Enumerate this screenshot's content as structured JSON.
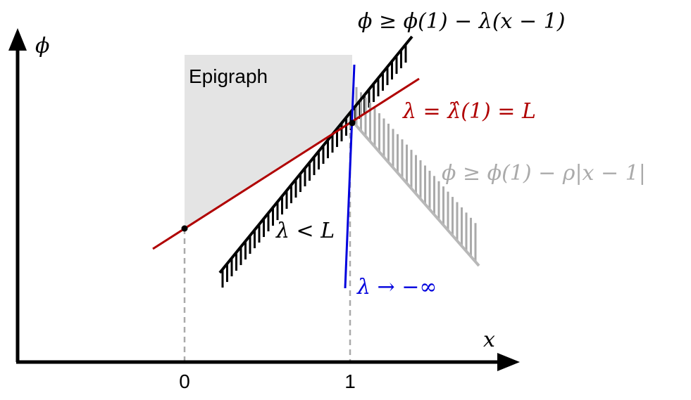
{
  "axes": {
    "y_label": "ϕ",
    "x_label": "x",
    "x_ticks": [
      "0",
      "1"
    ]
  },
  "regions": {
    "epigraph": "Epigraph"
  },
  "labels": {
    "constraint": "ϕ ≥ ϕ(1) − λ(x − 1)",
    "red_line": "λ = λ̂(1) = L",
    "gray_constraint": "ϕ ≥ ϕ(1) − ρ|x − 1|",
    "black_line": "λ < L",
    "blue_line": "λ → −∞"
  }
}
